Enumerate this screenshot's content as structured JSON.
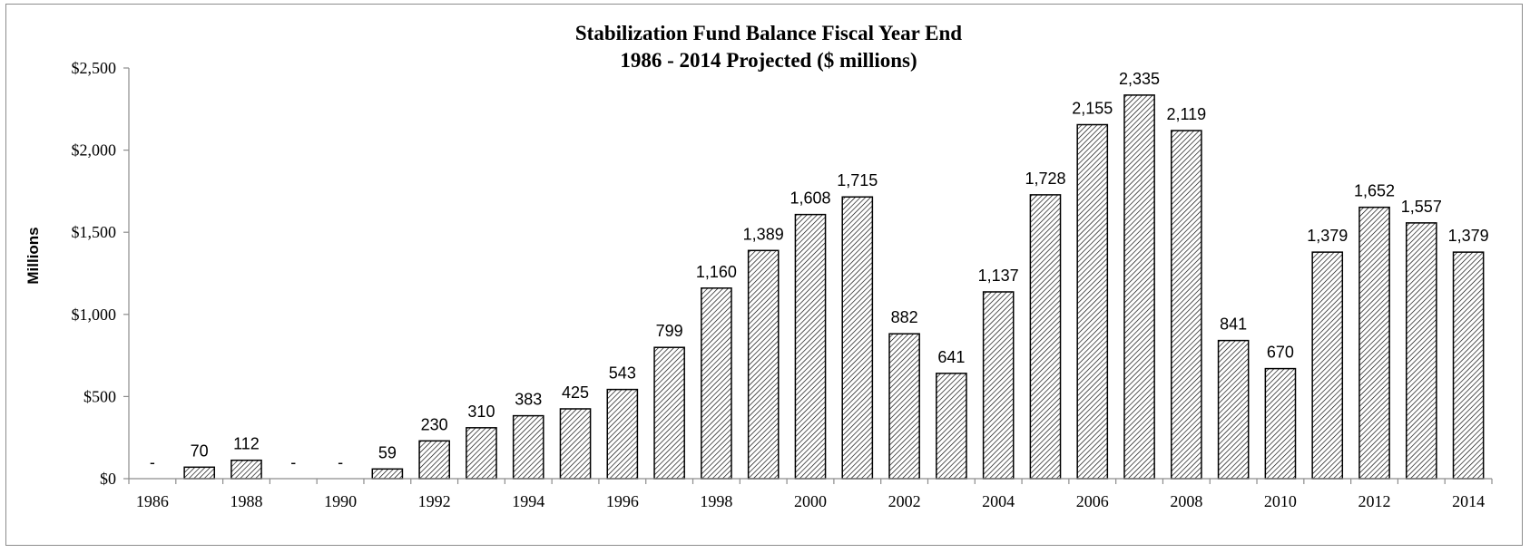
{
  "chart_data": {
    "type": "bar",
    "title": "Stabilization Fund Balance Fiscal Year End",
    "subtitle": "1986 - 2014 Projected ($ millions)",
    "ylabel": "Millions",
    "xlabel": "",
    "ylim": [
      0,
      2500
    ],
    "yticks": [
      0,
      500,
      1000,
      1500,
      2000,
      2500
    ],
    "ytick_labels": [
      "$0",
      "$500",
      "$1,000",
      "$1,500",
      "$2,000",
      "$2,500"
    ],
    "categories": [
      "1986",
      "1987",
      "1988",
      "1989",
      "1990",
      "1991",
      "1992",
      "1993",
      "1994",
      "1995",
      "1996",
      "1997",
      "1998",
      "1999",
      "2000",
      "2001",
      "2002",
      "2003",
      "2004",
      "2005",
      "2006",
      "2007",
      "2008",
      "2009",
      "2010",
      "2011",
      "2012",
      "2013",
      "2014"
    ],
    "xtick_labels": [
      "1986",
      "1988",
      "1990",
      "1992",
      "1994",
      "1996",
      "1998",
      "2000",
      "2002",
      "2004",
      "2006",
      "2008",
      "2010",
      "2012",
      "2014"
    ],
    "values": [
      0,
      70,
      112,
      0,
      0,
      59,
      230,
      310,
      383,
      425,
      543,
      799,
      1160,
      1389,
      1608,
      1715,
      882,
      641,
      1137,
      1728,
      2155,
      2335,
      2119,
      841,
      670,
      1379,
      1652,
      1557,
      1379
    ],
    "data_labels": [
      "-",
      "70",
      "112",
      "-",
      "-",
      "59",
      "230",
      "310",
      "383",
      "425",
      "543",
      "799",
      "1,160",
      "1,389",
      "1,608",
      "1,715",
      "882",
      "641",
      "1,137",
      "1,728",
      "2,155",
      "2,335",
      "2,119",
      "841",
      "670",
      "1,379",
      "1,652",
      "1,557",
      "1,379"
    ],
    "grid": false,
    "legend": "none",
    "bar_pattern": "diagonal-hatch",
    "bar_color": "#000000"
  }
}
